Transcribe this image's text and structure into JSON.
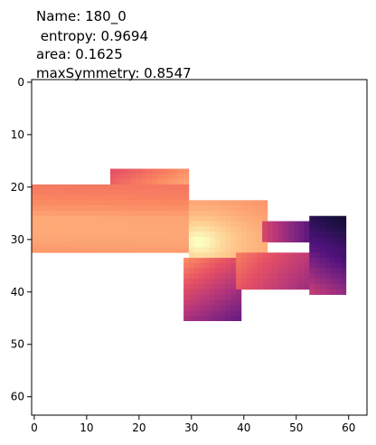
{
  "chart_data": {
    "type": "heatmap",
    "title_lines": [
      "Name: 180_0",
      " entropy: 0.9694",
      "area: 0.1625",
      "maxSymmetry: 0.8547"
    ],
    "colormap": "inferno",
    "grid_size": [
      64,
      64
    ],
    "xlim": [
      -0.5,
      63.5
    ],
    "ylim": [
      63.5,
      -0.5
    ],
    "xticks": [
      0,
      10,
      20,
      30,
      40,
      50,
      60
    ],
    "yticks": [
      0,
      10,
      20,
      30,
      40,
      50,
      60
    ],
    "peak": {
      "x": 31.5,
      "y": 30.5
    },
    "regions": [
      {
        "name": "left-bar",
        "x": [
          0,
          29
        ],
        "y": [
          20,
          32
        ]
      },
      {
        "name": "upper-block",
        "x": [
          15,
          29
        ],
        "y": [
          17,
          20
        ]
      },
      {
        "name": "center-block",
        "x": [
          30,
          44
        ],
        "y": [
          23,
          33
        ]
      },
      {
        "name": "lower-left-block",
        "x": [
          29,
          39
        ],
        "y": [
          34,
          45
        ]
      },
      {
        "name": "lower-band",
        "x": [
          39,
          59
        ],
        "y": [
          33,
          39
        ]
      },
      {
        "name": "upper-right-bar",
        "x": [
          44,
          59
        ],
        "y": [
          27,
          30
        ]
      },
      {
        "name": "right-edge-block",
        "x": [
          53,
          59
        ],
        "y": [
          26,
          40
        ]
      }
    ]
  }
}
